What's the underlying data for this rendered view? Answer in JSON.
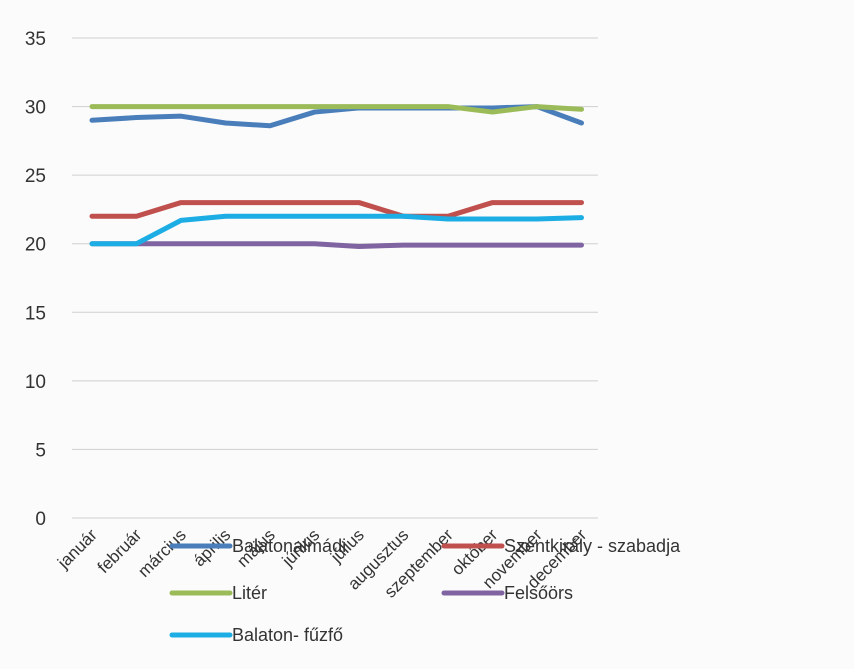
{
  "chart_data": {
    "type": "line",
    "title": "",
    "xlabel": "",
    "ylabel": "",
    "categories": [
      "január",
      "február",
      "március",
      "április",
      "május",
      "június",
      "július",
      "augusztus",
      "szeptember",
      "október",
      "november",
      "december"
    ],
    "ylim": [
      0,
      35
    ],
    "yticks": [
      0,
      5,
      10,
      15,
      20,
      25,
      30,
      35
    ],
    "grid": true,
    "legend_position": "bottom",
    "series": [
      {
        "name": "Balatonalmádi",
        "color": "#4a7ebb",
        "values": [
          29,
          29.2,
          29.3,
          28.8,
          28.6,
          29.6,
          29.9,
          29.9,
          29.9,
          29.9,
          30,
          28.8
        ]
      },
      {
        "name": "Szentkirály - szabadja",
        "color": "#c0504d",
        "values": [
          22,
          22,
          23,
          23,
          23,
          23,
          23,
          22,
          22,
          23,
          23,
          23
        ]
      },
      {
        "name": "Litér",
        "color": "#9bbb59",
        "values": [
          30,
          30,
          30,
          30,
          30,
          30,
          30,
          30,
          30,
          29.6,
          30,
          29.8
        ]
      },
      {
        "name": "Felsőörs",
        "color": "#8064a2",
        "values": [
          20,
          20,
          20,
          20,
          20,
          20,
          19.8,
          19.9,
          19.9,
          19.9,
          19.9,
          19.9
        ]
      },
      {
        "name": "Balaton-  fűzfő",
        "color": "#1cade4",
        "values": [
          20,
          20,
          21.7,
          22,
          22,
          22,
          22,
          22,
          21.8,
          21.8,
          21.8,
          21.9
        ]
      }
    ]
  }
}
